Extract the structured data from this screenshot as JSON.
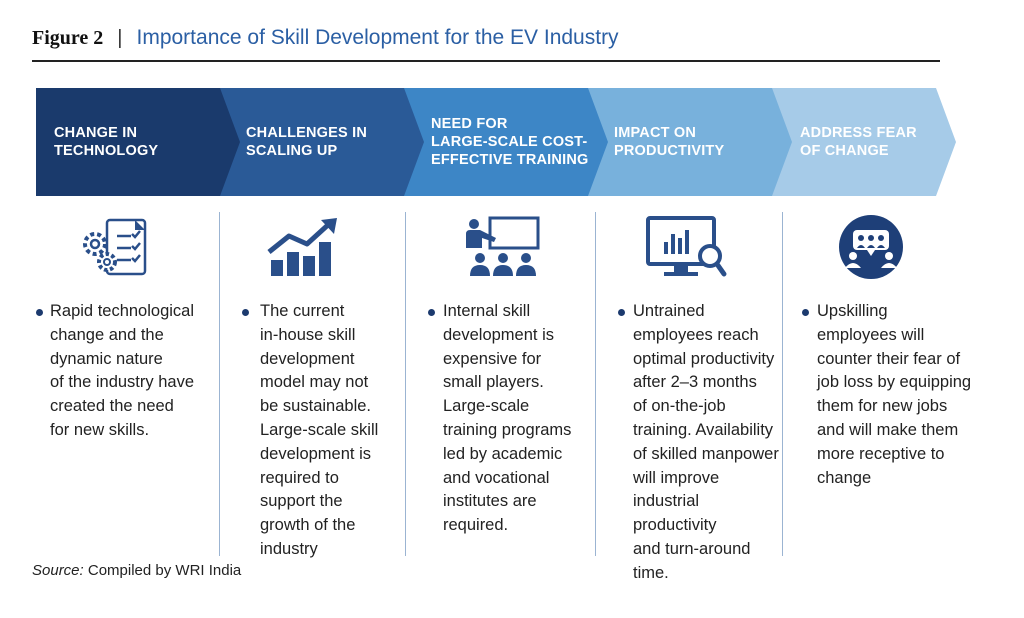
{
  "figure": {
    "label": "Figure 2",
    "separator": "|",
    "title": "Importance of Skill Development for the EV Industry"
  },
  "steps": [
    {
      "header": "CHANGE IN\nTECHNOLOGY",
      "icon": "gears-checklist-icon",
      "text": "Rapid technological\nchange and the\ndynamic nature\nof the industry have\ncreated the need\nfor new skills.",
      "color": "#1a3a6c"
    },
    {
      "header": "CHALLENGES IN\nSCALING UP",
      "icon": "growth-chart-icon",
      "text": "The current\nin-house skill\ndevelopment\nmodel may not\nbe sustainable.\nLarge-scale skill\ndevelopment is\nrequired to\nsupport the\ngrowth of the\nindustry",
      "color": "#2a5a97"
    },
    {
      "header": "NEED FOR\nLARGE-SCALE COST-\nEFFECTIVE TRAINING",
      "icon": "classroom-training-icon",
      "text": "Internal skill\ndevelopment is\nexpensive for\nsmall  players.\nLarge-scale\ntraining programs\nled by academic\nand vocational\ninstitutes are\nrequired.",
      "color": "#3d86c6"
    },
    {
      "header": "IMPACT ON\nPRODUCTIVITY",
      "icon": "monitor-analytics-icon",
      "text": "Untrained\nemployees reach\noptimal productivity\nafter 2–3 months\nof on-the-job\ntraining. Availability\nof skilled manpower\nwill improve\nindustrial productivity\nand turn-around\ntime.",
      "color": "#78b1dc"
    },
    {
      "header": "ADDRESS FEAR\nOF CHANGE",
      "icon": "group-discussion-icon",
      "text": "Upskilling\nemployees will\ncounter their fear of\njob loss by equipping\nthem for new jobs\nand will make them\nmore receptive to\nchange",
      "color": "#a6cbe8"
    }
  ],
  "source": {
    "prefix": "Source:",
    "text": "Compiled by WRI India"
  }
}
